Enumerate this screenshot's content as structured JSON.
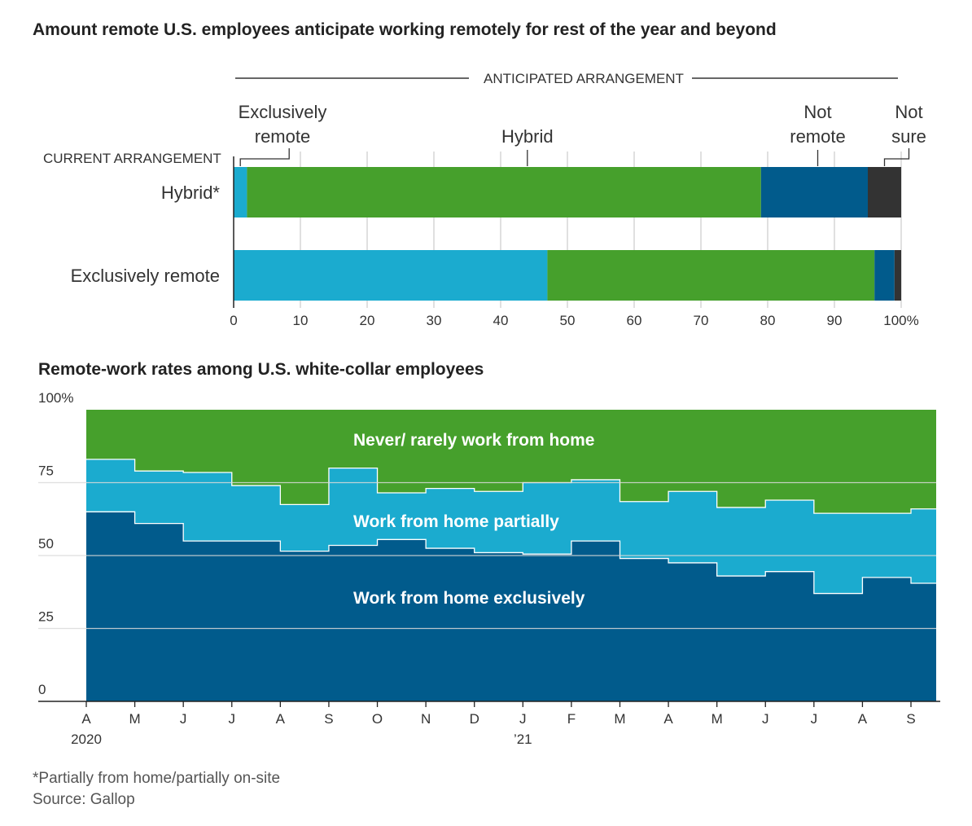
{
  "chart_data": [
    {
      "type": "bar",
      "stacked": true,
      "orientation": "horizontal",
      "title": "Amount remote U.S. employees anticipate working remotely for rest of the year and beyond",
      "column_header": "ANTICIPATED ARRANGEMENT",
      "row_header": "CURRENT ARRANGEMENT",
      "categories": [
        "Hybrid*",
        "Exclusively remote"
      ],
      "series": [
        {
          "name": "Exclusively remote",
          "label_lines": [
            "Exclusively",
            "remote"
          ],
          "color": "#1babcf",
          "values": [
            2,
            47
          ]
        },
        {
          "name": "Hybrid",
          "label_lines": [
            "Hybrid"
          ],
          "color": "#46a02c",
          "values": [
            77,
            49
          ]
        },
        {
          "name": "Not remote",
          "label_lines": [
            "Not",
            "remote"
          ],
          "color": "#015b8c",
          "values": [
            16,
            3
          ]
        },
        {
          "name": "Not sure",
          "label_lines": [
            "Not",
            "sure"
          ],
          "color": "#333333",
          "values": [
            5,
            1
          ]
        }
      ],
      "xlim": [
        0,
        100
      ],
      "xticks": [
        0,
        10,
        20,
        30,
        40,
        50,
        60,
        70,
        80,
        90,
        100
      ],
      "xtick_labels": [
        "0",
        "10",
        "20",
        "30",
        "40",
        "50",
        "60",
        "70",
        "80",
        "90",
        "100%"
      ],
      "grid": true
    },
    {
      "type": "area",
      "stacked": true,
      "step": true,
      "title": "Remote-work rates among U.S. white-collar employees",
      "ylim": [
        0,
        100
      ],
      "yticks": [
        0,
        25,
        50,
        75,
        100
      ],
      "ytick_labels": [
        "0",
        "25",
        "50",
        "75",
        "100%"
      ],
      "x": [
        "A",
        "M",
        "J",
        "J",
        "A",
        "S",
        "O",
        "N",
        "D",
        "J",
        "F",
        "M",
        "A",
        "M",
        "J",
        "J",
        "A",
        "S"
      ],
      "x_year_labels": {
        "0": "2020",
        "9": "’21"
      },
      "series": [
        {
          "name": "Work from home exclusively",
          "color": "#015b8c",
          "values": [
            65,
            61,
            55,
            55,
            51.5,
            53.5,
            55.5,
            52.5,
            51,
            50.5,
            55,
            49,
            47.5,
            43,
            44.5,
            37,
            42.5,
            40.5
          ]
        },
        {
          "name": "Work from home partially",
          "color": "#1babcf",
          "values": [
            18,
            18,
            23.5,
            19,
            16,
            26.5,
            16,
            20.5,
            21,
            24.5,
            21,
            19.5,
            24.5,
            23.5,
            24.5,
            27.5,
            22,
            25.5
          ]
        },
        {
          "name": "Never/ rarely work from home",
          "color": "#46a02c",
          "values": [
            17,
            21,
            21.5,
            26,
            32.5,
            20,
            28.5,
            27,
            28,
            25,
            24,
            31.5,
            28,
            33.5,
            31,
            35.5,
            35.5,
            34
          ]
        }
      ],
      "grid": true
    }
  ],
  "footnote": "*Partially from home/partially on-site",
  "source": "Source: Gallop"
}
